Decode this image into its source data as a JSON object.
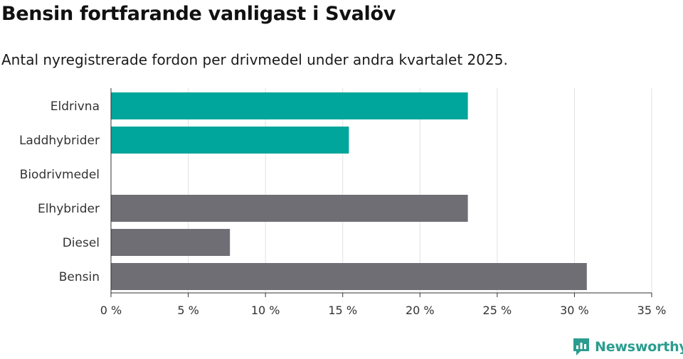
{
  "title": "Bensin fortfarande vanligast i Svalöv",
  "subtitle": "Antal nyregistrerade fordon per drivmedel under andra kvartalet 2025.",
  "brand": {
    "name": "Newsworthy",
    "icon": "newsworthy-logo-icon",
    "color": "#2a9d8f"
  },
  "chart_data": {
    "type": "bar",
    "orientation": "horizontal",
    "categories": [
      "Eldrivna",
      "Laddhybrider",
      "Biodrivmedel",
      "Elhybrider",
      "Diesel",
      "Bensin"
    ],
    "values": [
      23.1,
      15.4,
      0,
      23.1,
      7.7,
      30.8
    ],
    "colors": [
      "#00a59b",
      "#00a59b",
      "#6e6e74",
      "#6e6e74",
      "#6e6e74",
      "#6e6e74"
    ],
    "xlim": [
      0,
      35
    ],
    "xticks": [
      0,
      5,
      10,
      15,
      20,
      25,
      30,
      35
    ],
    "xtick_labels": [
      "0 %",
      "5 %",
      "10 %",
      "15 %",
      "20 %",
      "25 %",
      "30 %",
      "35 %"
    ],
    "grid": "vertical"
  }
}
